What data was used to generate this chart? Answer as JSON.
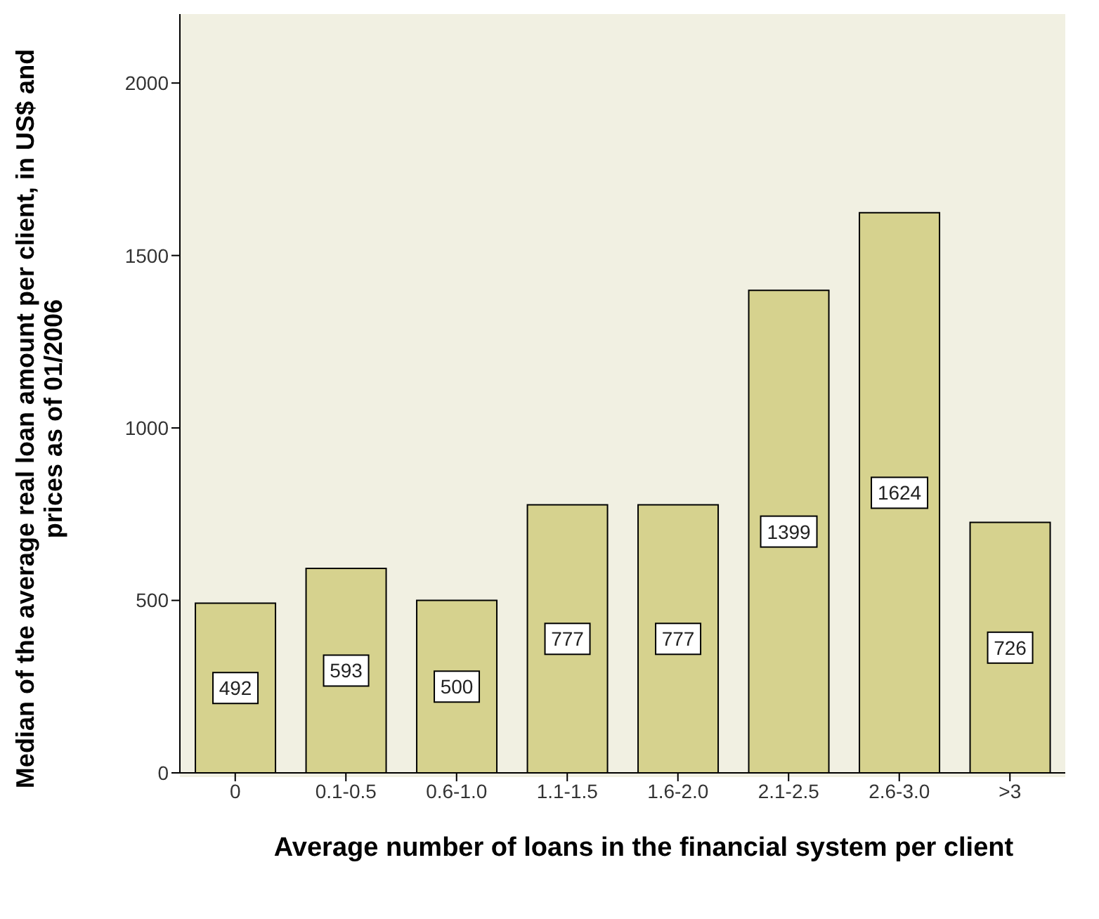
{
  "chart_data": {
    "type": "bar",
    "xlabel": "Average number of loans in the financial system per client",
    "ylabel": "Median of the average real loan amount per client, in US$ and prices as of 01/2006",
    "categories": [
      "0",
      "0.1-0.5",
      "0.6-1.0",
      "1.1-1.5",
      "1.6-2.0",
      "2.1-2.5",
      "2.6-3.0",
      ">3"
    ],
    "values": [
      492,
      593,
      500,
      777,
      777,
      1399,
      1624,
      726
    ],
    "color": "#d6d28e",
    "ylim": [
      0,
      2200
    ],
    "yticks": [
      0,
      500,
      1000,
      1500,
      2000
    ],
    "grid": false,
    "data_labels": true
  }
}
